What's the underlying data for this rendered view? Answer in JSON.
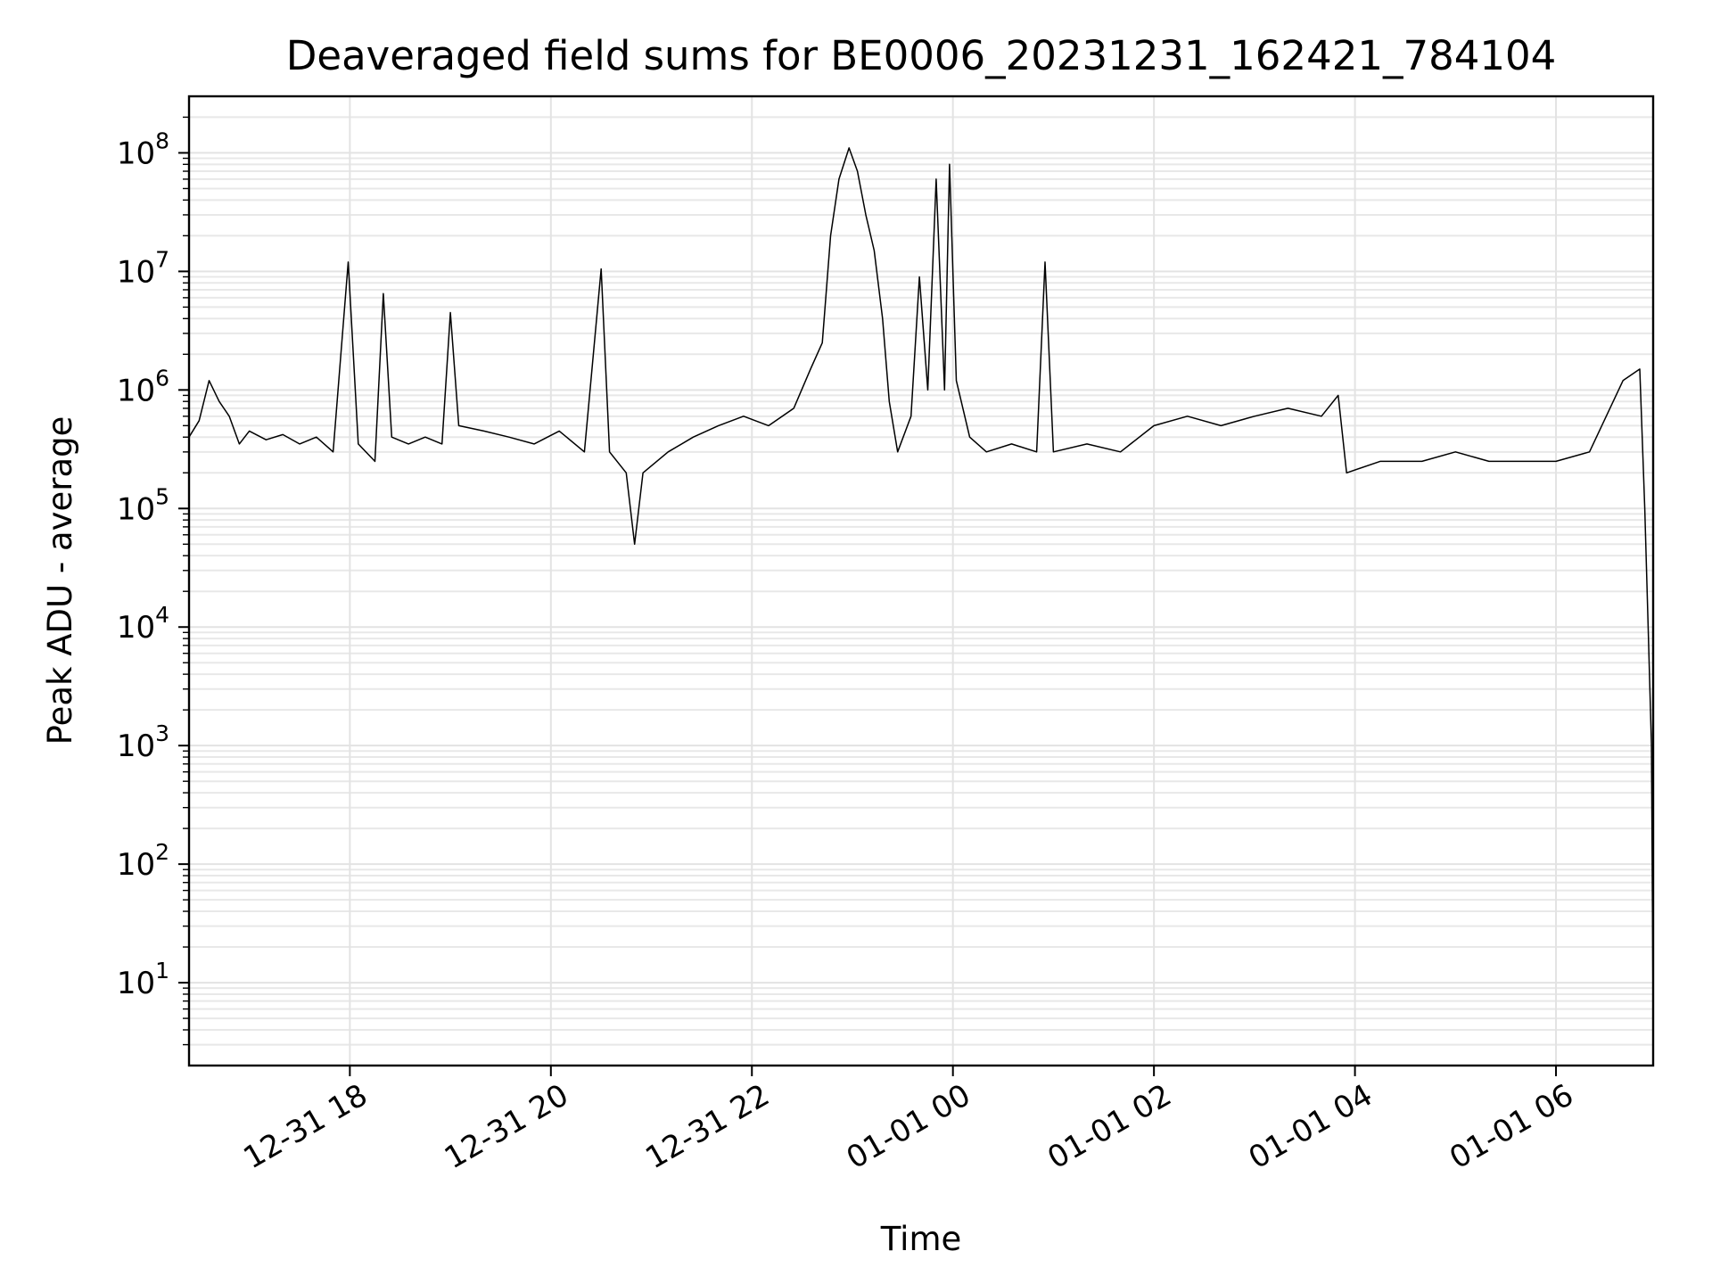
{
  "chart_data": {
    "type": "line",
    "title": "Deaveraged field sums for BE0006_20231231_162421_784104",
    "xlabel": "Time",
    "ylabel": "Peak ADU - average",
    "yscale": "log",
    "ylim": [
      2,
      300000000
    ],
    "xlim": [
      "2023-12-31 16:24",
      "2024-01-01 06:58"
    ],
    "x_ticks": [
      {
        "value": "2023-12-31 18:00",
        "label": "12-31 18"
      },
      {
        "value": "2023-12-31 20:00",
        "label": "12-31 20"
      },
      {
        "value": "2023-12-31 22:00",
        "label": "12-31 22"
      },
      {
        "value": "2024-01-01 00:00",
        "label": "01-01 00"
      },
      {
        "value": "2024-01-01 02:00",
        "label": "01-01 02"
      },
      {
        "value": "2024-01-01 04:00",
        "label": "01-01 04"
      },
      {
        "value": "2024-01-01 06:00",
        "label": "01-01 06"
      }
    ],
    "y_ticks": [
      {
        "value": 10,
        "base": "10",
        "exp": "1"
      },
      {
        "value": 100,
        "base": "10",
        "exp": "2"
      },
      {
        "value": 1000,
        "base": "10",
        "exp": "3"
      },
      {
        "value": 10000,
        "base": "10",
        "exp": "4"
      },
      {
        "value": 100000,
        "base": "10",
        "exp": "5"
      },
      {
        "value": 1000000,
        "base": "10",
        "exp": "6"
      },
      {
        "value": 10000000,
        "base": "10",
        "exp": "7"
      },
      {
        "value": 100000000,
        "base": "10",
        "exp": "8"
      }
    ],
    "grid": "major and minor",
    "series_color": "#000000",
    "series": [
      {
        "points": [
          [
            "2023-12-31 16:24",
            400000
          ],
          [
            "2023-12-31 16:30",
            550000
          ],
          [
            "2023-12-31 16:36",
            1200000
          ],
          [
            "2023-12-31 16:42",
            800000
          ],
          [
            "2023-12-31 16:48",
            600000
          ],
          [
            "2023-12-31 16:54",
            350000
          ],
          [
            "2023-12-31 17:00",
            450000
          ],
          [
            "2023-12-31 17:10",
            380000
          ],
          [
            "2023-12-31 17:20",
            420000
          ],
          [
            "2023-12-31 17:30",
            350000
          ],
          [
            "2023-12-31 17:40",
            400000
          ],
          [
            "2023-12-31 17:50",
            300000
          ],
          [
            "2023-12-31 17:59",
            12000000
          ],
          [
            "2023-12-31 18:05",
            350000
          ],
          [
            "2023-12-31 18:15",
            250000
          ],
          [
            "2023-12-31 18:20",
            6500000
          ],
          [
            "2023-12-31 18:25",
            400000
          ],
          [
            "2023-12-31 18:35",
            350000
          ],
          [
            "2023-12-31 18:45",
            400000
          ],
          [
            "2023-12-31 18:55",
            350000
          ],
          [
            "2023-12-31 19:00",
            4500000
          ],
          [
            "2023-12-31 19:05",
            500000
          ],
          [
            "2023-12-31 19:20",
            450000
          ],
          [
            "2023-12-31 19:35",
            400000
          ],
          [
            "2023-12-31 19:50",
            350000
          ],
          [
            "2023-12-31 20:05",
            450000
          ],
          [
            "2023-12-31 20:20",
            300000
          ],
          [
            "2023-12-31 20:30",
            10500000
          ],
          [
            "2023-12-31 20:35",
            300000
          ],
          [
            "2023-12-31 20:45",
            200000
          ],
          [
            "2023-12-31 20:50",
            50000
          ],
          [
            "2023-12-31 20:55",
            200000
          ],
          [
            "2023-12-31 21:10",
            300000
          ],
          [
            "2023-12-31 21:25",
            400000
          ],
          [
            "2023-12-31 21:40",
            500000
          ],
          [
            "2023-12-31 21:55",
            600000
          ],
          [
            "2023-12-31 22:10",
            500000
          ],
          [
            "2023-12-31 22:25",
            700000
          ],
          [
            "2023-12-31 22:35",
            1500000
          ],
          [
            "2023-12-31 22:42",
            2500000
          ],
          [
            "2023-12-31 22:47",
            20000000
          ],
          [
            "2023-12-31 22:52",
            60000000
          ],
          [
            "2023-12-31 22:58",
            110000000
          ],
          [
            "2023-12-31 23:03",
            70000000
          ],
          [
            "2023-12-31 23:08",
            30000000
          ],
          [
            "2023-12-31 23:13",
            15000000
          ],
          [
            "2023-12-31 23:18",
            4000000
          ],
          [
            "2023-12-31 23:22",
            800000
          ],
          [
            "2023-12-31 23:27",
            300000
          ],
          [
            "2023-12-31 23:35",
            600000
          ],
          [
            "2023-12-31 23:40",
            9000000
          ],
          [
            "2023-12-31 23:45",
            1000000
          ],
          [
            "2023-12-31 23:50",
            60000000
          ],
          [
            "2023-12-31 23:55",
            1000000
          ],
          [
            "2023-12-31 23:58",
            80000000
          ],
          [
            "2024-01-01 00:02",
            1200000
          ],
          [
            "2024-01-01 00:10",
            400000
          ],
          [
            "2024-01-01 00:20",
            300000
          ],
          [
            "2024-01-01 00:35",
            350000
          ],
          [
            "2024-01-01 00:50",
            300000
          ],
          [
            "2024-01-01 00:55",
            12000000
          ],
          [
            "2024-01-01 01:00",
            300000
          ],
          [
            "2024-01-01 01:20",
            350000
          ],
          [
            "2024-01-01 01:40",
            300000
          ],
          [
            "2024-01-01 02:00",
            500000
          ],
          [
            "2024-01-01 02:20",
            600000
          ],
          [
            "2024-01-01 02:40",
            500000
          ],
          [
            "2024-01-01 03:00",
            600000
          ],
          [
            "2024-01-01 03:20",
            700000
          ],
          [
            "2024-01-01 03:40",
            600000
          ],
          [
            "2024-01-01 03:50",
            900000
          ],
          [
            "2024-01-01 03:55",
            200000
          ],
          [
            "2024-01-01 04:15",
            250000
          ],
          [
            "2024-01-01 04:40",
            250000
          ],
          [
            "2024-01-01 05:00",
            300000
          ],
          [
            "2024-01-01 05:20",
            250000
          ],
          [
            "2024-01-01 05:40",
            250000
          ],
          [
            "2024-01-01 06:00",
            250000
          ],
          [
            "2024-01-01 06:20",
            300000
          ],
          [
            "2024-01-01 06:40",
            1200000
          ],
          [
            "2024-01-01 06:50",
            1500000
          ],
          [
            "2024-01-01 06:53",
            100000
          ],
          [
            "2024-01-01 06:55",
            10000
          ],
          [
            "2024-01-01 06:57",
            1000
          ],
          [
            "2024-01-01 06:58",
            5
          ]
        ]
      }
    ]
  }
}
